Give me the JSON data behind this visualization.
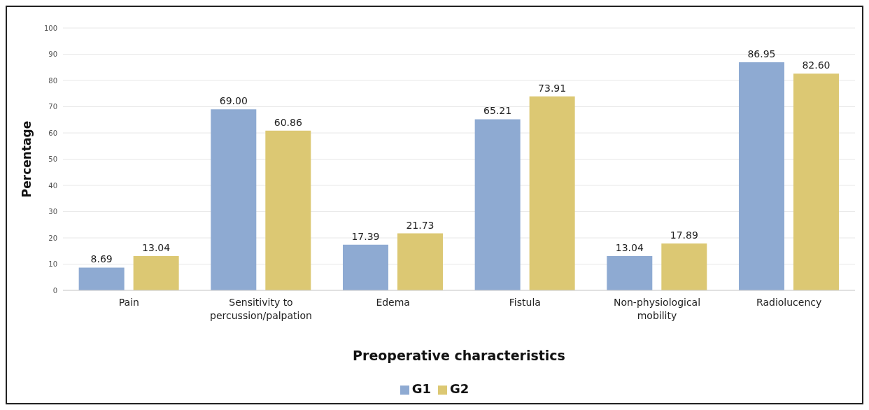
{
  "chart_data": {
    "type": "bar",
    "xlabel": "Preoperative characteristics",
    "ylabel": "Percentage",
    "categories": [
      "Pain",
      "Sensitivity to percussion/palpation",
      "Edema",
      "Fistula",
      "Non-physiological mobility",
      "Radiolucency"
    ],
    "series": [
      {
        "name": "G1",
        "color": "#8eaad2",
        "values": [
          8.69,
          69.0,
          17.39,
          65.21,
          13.04,
          86.95
        ],
        "value_labels": [
          "8.69",
          "69.00",
          "17.39",
          "65.21",
          "13.04",
          "86.95"
        ]
      },
      {
        "name": "G2",
        "color": "#dcc873",
        "values": [
          13.04,
          60.86,
          21.73,
          73.91,
          17.89,
          82.6
        ],
        "value_labels": [
          "13.04",
          "60.86",
          "21.73",
          "73.91",
          "17.89",
          "82.60"
        ]
      }
    ],
    "ylim": [
      0,
      100
    ],
    "yticks": [
      0,
      10,
      20,
      30,
      40,
      50,
      60,
      70,
      80,
      90,
      100
    ],
    "grid": "y",
    "legend": "bottom"
  }
}
